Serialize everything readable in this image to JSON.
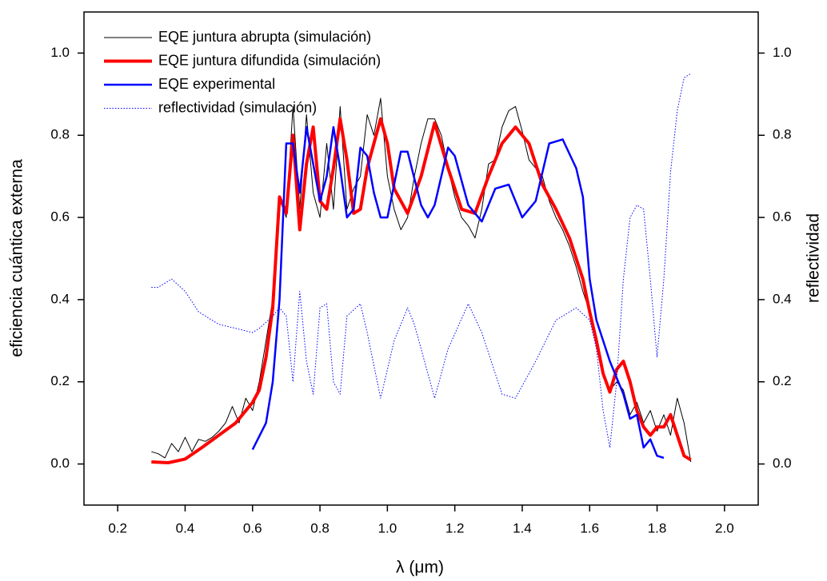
{
  "chart_data": {
    "type": "line",
    "x_label": "λ (μm)",
    "y_label": "eficiencia cuántica externa",
    "y2_label": "reflectividad",
    "xlim": [
      0.1,
      2.1
    ],
    "ylim": [
      -0.1,
      1.1
    ],
    "y2lim": [
      -0.1,
      1.1
    ],
    "xticks": [
      0.2,
      0.4,
      0.6,
      0.8,
      {
        "value": 1.0,
        "label": "1.0"
      },
      1.2,
      1.4,
      1.6,
      1.8,
      {
        "value": 2.0,
        "label": "2.0"
      }
    ],
    "yticks": [
      {
        "value": 0,
        "label": "0.0"
      },
      0.2,
      0.4,
      0.6,
      0.8,
      {
        "value": 1.0,
        "label": "1.0"
      }
    ],
    "y2ticks": [
      {
        "value": 0,
        "label": "0.0"
      },
      0.2,
      0.4,
      0.6,
      0.8,
      {
        "value": 1.0,
        "label": "1.0"
      }
    ],
    "legend": "upper left",
    "series": [
      {
        "name": "EQE juntura abrupta (simulación)",
        "color": "#000000",
        "style": "thin",
        "x": [
          0.3,
          0.32,
          0.34,
          0.36,
          0.38,
          0.4,
          0.42,
          0.44,
          0.46,
          0.48,
          0.5,
          0.52,
          0.54,
          0.56,
          0.58,
          0.6,
          0.62,
          0.64,
          0.66,
          0.68,
          0.7,
          0.72,
          0.74,
          0.76,
          0.78,
          0.8,
          0.82,
          0.84,
          0.86,
          0.88,
          0.9,
          0.92,
          0.94,
          0.96,
          0.98,
          1.0,
          1.02,
          1.04,
          1.06,
          1.08,
          1.1,
          1.12,
          1.14,
          1.16,
          1.18,
          1.2,
          1.22,
          1.24,
          1.26,
          1.28,
          1.3,
          1.32,
          1.34,
          1.36,
          1.38,
          1.4,
          1.42,
          1.44,
          1.46,
          1.48,
          1.5,
          1.52,
          1.54,
          1.56,
          1.58,
          1.6,
          1.62,
          1.64,
          1.66,
          1.68,
          1.7,
          1.72,
          1.74,
          1.76,
          1.78,
          1.8,
          1.82,
          1.84,
          1.86,
          1.88,
          1.9
        ],
        "values": [
          0.03,
          0.025,
          0.015,
          0.05,
          0.03,
          0.065,
          0.03,
          0.06,
          0.055,
          0.065,
          0.08,
          0.1,
          0.14,
          0.1,
          0.16,
          0.13,
          0.2,
          0.3,
          0.4,
          0.65,
          0.6,
          0.87,
          0.62,
          0.85,
          0.66,
          0.6,
          0.78,
          0.62,
          0.87,
          0.62,
          0.67,
          0.7,
          0.85,
          0.8,
          0.89,
          0.7,
          0.62,
          0.57,
          0.6,
          0.7,
          0.78,
          0.84,
          0.84,
          0.8,
          0.72,
          0.65,
          0.6,
          0.58,
          0.55,
          0.62,
          0.73,
          0.74,
          0.82,
          0.86,
          0.87,
          0.81,
          0.74,
          0.72,
          0.7,
          0.64,
          0.6,
          0.57,
          0.53,
          0.48,
          0.42,
          0.37,
          0.3,
          0.22,
          0.18,
          0.2,
          0.18,
          0.12,
          0.15,
          0.1,
          0.13,
          0.08,
          0.12,
          0.07,
          0.16,
          0.1,
          0.005
        ]
      },
      {
        "name": "EQE juntura difundida (simulación)",
        "color": "#ff0000",
        "style": "thick",
        "x": [
          0.3,
          0.35,
          0.4,
          0.45,
          0.5,
          0.55,
          0.6,
          0.62,
          0.64,
          0.66,
          0.68,
          0.7,
          0.72,
          0.74,
          0.76,
          0.78,
          0.8,
          0.82,
          0.84,
          0.86,
          0.88,
          0.9,
          0.92,
          0.94,
          0.98,
          1.0,
          1.02,
          1.06,
          1.1,
          1.14,
          1.18,
          1.22,
          1.26,
          1.3,
          1.34,
          1.38,
          1.42,
          1.46,
          1.5,
          1.54,
          1.58,
          1.6,
          1.62,
          1.64,
          1.66,
          1.68,
          1.7,
          1.72,
          1.74,
          1.76,
          1.78,
          1.8,
          1.82,
          1.84,
          1.86,
          1.88,
          1.9
        ],
        "values": [
          0.005,
          0.003,
          0.012,
          0.04,
          0.07,
          0.1,
          0.15,
          0.18,
          0.26,
          0.38,
          0.65,
          0.61,
          0.8,
          0.57,
          0.73,
          0.82,
          0.64,
          0.62,
          0.72,
          0.84,
          0.74,
          0.61,
          0.62,
          0.72,
          0.84,
          0.78,
          0.67,
          0.61,
          0.7,
          0.83,
          0.72,
          0.62,
          0.61,
          0.7,
          0.78,
          0.82,
          0.78,
          0.68,
          0.62,
          0.55,
          0.45,
          0.37,
          0.3,
          0.22,
          0.175,
          0.23,
          0.25,
          0.2,
          0.13,
          0.09,
          0.07,
          0.09,
          0.09,
          0.12,
          0.07,
          0.02,
          0.01
        ]
      },
      {
        "name": "EQE experimental",
        "color": "#0000ff",
        "style": "medium",
        "x": [
          0.6,
          0.64,
          0.66,
          0.68,
          0.7,
          0.72,
          0.74,
          0.76,
          0.78,
          0.8,
          0.82,
          0.84,
          0.86,
          0.88,
          0.9,
          0.92,
          0.94,
          0.96,
          0.98,
          1.0,
          1.04,
          1.06,
          1.1,
          1.12,
          1.14,
          1.18,
          1.2,
          1.24,
          1.28,
          1.32,
          1.36,
          1.4,
          1.44,
          1.48,
          1.52,
          1.56,
          1.58,
          1.6,
          1.62,
          1.66,
          1.7,
          1.72,
          1.74,
          1.76,
          1.78,
          1.8,
          1.82
        ],
        "values": [
          0.035,
          0.1,
          0.2,
          0.4,
          0.78,
          0.78,
          0.66,
          0.82,
          0.73,
          0.64,
          0.7,
          0.82,
          0.72,
          0.6,
          0.62,
          0.77,
          0.75,
          0.66,
          0.6,
          0.6,
          0.76,
          0.76,
          0.63,
          0.6,
          0.63,
          0.77,
          0.75,
          0.63,
          0.59,
          0.67,
          0.68,
          0.6,
          0.64,
          0.78,
          0.79,
          0.72,
          0.65,
          0.45,
          0.35,
          0.25,
          0.17,
          0.11,
          0.12,
          0.04,
          0.06,
          0.02,
          0.015
        ]
      },
      {
        "name": "reflectividad (simulación)",
        "color": "#0000ff",
        "style": "dotted",
        "axis": "y2",
        "x": [
          0.3,
          0.32,
          0.36,
          0.4,
          0.44,
          0.5,
          0.55,
          0.6,
          0.62,
          0.66,
          0.68,
          0.7,
          0.72,
          0.74,
          0.76,
          0.78,
          0.8,
          0.82,
          0.84,
          0.86,
          0.88,
          0.92,
          0.94,
          0.98,
          1.02,
          1.06,
          1.08,
          1.14,
          1.18,
          1.24,
          1.28,
          1.34,
          1.38,
          1.44,
          1.5,
          1.56,
          1.6,
          1.62,
          1.64,
          1.66,
          1.68,
          1.7,
          1.72,
          1.74,
          1.76,
          1.78,
          1.8,
          1.82,
          1.84,
          1.86,
          1.88,
          1.9
        ],
        "values": [
          0.43,
          0.43,
          0.45,
          0.42,
          0.37,
          0.34,
          0.33,
          0.32,
          0.33,
          0.36,
          0.38,
          0.36,
          0.2,
          0.42,
          0.25,
          0.17,
          0.38,
          0.39,
          0.2,
          0.17,
          0.36,
          0.39,
          0.32,
          0.16,
          0.3,
          0.38,
          0.34,
          0.16,
          0.28,
          0.39,
          0.32,
          0.17,
          0.16,
          0.25,
          0.35,
          0.38,
          0.35,
          0.28,
          0.13,
          0.04,
          0.2,
          0.45,
          0.6,
          0.63,
          0.62,
          0.45,
          0.26,
          0.45,
          0.71,
          0.86,
          0.94,
          0.95
        ]
      }
    ]
  }
}
